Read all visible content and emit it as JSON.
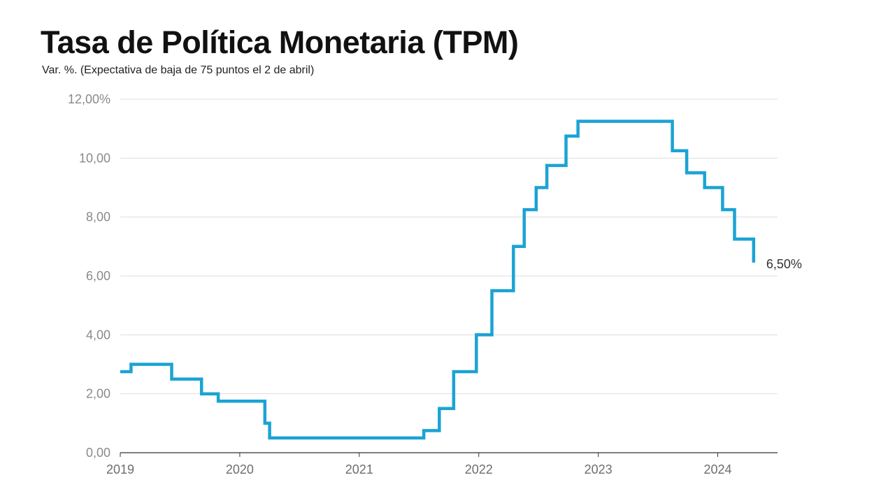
{
  "chart_data": {
    "type": "line",
    "title": "Tasa de Política Monetaria (TPM)",
    "subtitle": "Var. %. (Expectativa de baja de 75 puntos el 2 de abril)",
    "xlabel": "",
    "ylabel": "",
    "xlim": [
      2019.0,
      2024.5
    ],
    "ylim": [
      0,
      12
    ],
    "y_ticks": [
      {
        "value": 0,
        "label": "0,00"
      },
      {
        "value": 2,
        "label": "2,00"
      },
      {
        "value": 4,
        "label": "4,00"
      },
      {
        "value": 6,
        "label": "6,00"
      },
      {
        "value": 8,
        "label": "8,00"
      },
      {
        "value": 10,
        "label": "10,00"
      },
      {
        "value": 12,
        "label": "12,00%"
      }
    ],
    "x_ticks": [
      {
        "value": 2019,
        "label": "2019"
      },
      {
        "value": 2020,
        "label": "2020"
      },
      {
        "value": 2021,
        "label": "2021"
      },
      {
        "value": 2022,
        "label": "2022"
      },
      {
        "value": 2023,
        "label": "2023"
      },
      {
        "value": 2024,
        "label": "2024"
      }
    ],
    "grid": true,
    "line_color": "#1ba3d4",
    "end_label": "6,50%",
    "series": [
      {
        "interpolation": "step",
        "points": [
          [
            2019.0,
            2.75
          ],
          [
            2019.09,
            3.0
          ],
          [
            2019.43,
            2.5
          ],
          [
            2019.68,
            2.0
          ],
          [
            2019.82,
            1.75
          ],
          [
            2020.21,
            1.0
          ],
          [
            2020.25,
            0.5
          ],
          [
            2021.54,
            0.75
          ],
          [
            2021.67,
            1.5
          ],
          [
            2021.79,
            2.75
          ],
          [
            2021.98,
            4.0
          ],
          [
            2022.11,
            5.5
          ],
          [
            2022.29,
            7.0
          ],
          [
            2022.38,
            8.25
          ],
          [
            2022.48,
            9.0
          ],
          [
            2022.57,
            9.75
          ],
          [
            2022.73,
            10.75
          ],
          [
            2022.83,
            11.25
          ],
          [
            2023.62,
            10.25
          ],
          [
            2023.74,
            9.5
          ],
          [
            2023.89,
            9.0
          ],
          [
            2024.04,
            8.25
          ],
          [
            2024.14,
            7.25
          ],
          [
            2024.3,
            6.5
          ]
        ]
      }
    ]
  }
}
